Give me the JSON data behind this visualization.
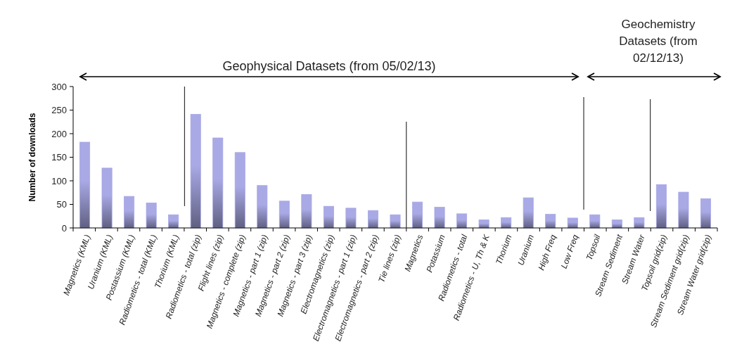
{
  "chart_data": {
    "type": "bar",
    "ylabel": "Number of downloads",
    "categories": [
      "Magnetics (KML)",
      "Uranium (KML)",
      "Postassium (KML)",
      "Radiometics - total (KML)",
      "Thorium (KML)",
      "Radiometics - total (zip)",
      "Flight lines (zip)",
      "Magnetics - complete (zip)",
      "Magnetics - part 1 (zip)",
      "Magnetics - part 2 (zip)",
      "Magnetics - part 3 (zip)",
      "Electromagnetics (zip)",
      "Electromagnetics - part 1 (zip)",
      "Electromagnetics - part 2 (zip)",
      "Tie lines (zip)",
      "Magnetics",
      "Potassium",
      "Radiometics - total",
      "Radiometics - U, Th & K",
      "Thorium",
      "Uranium",
      "High Freq",
      "Low Freq",
      "Topsoil",
      "Stream Sediment",
      "Stream Water",
      "Topsoil grid(zip)",
      "Stream Sediment grid(zip)",
      "Stream Water grid(zip)"
    ],
    "values": [
      182,
      127,
      67,
      53,
      28,
      241,
      191,
      160,
      90,
      57,
      71,
      46,
      42,
      37,
      28,
      55,
      44,
      30,
      17,
      22,
      64,
      29,
      21,
      28,
      17,
      22,
      92,
      76,
      62
    ],
    "color": "#a9a9e6",
    "ylim": [
      0,
      300
    ],
    "yticks": [
      0,
      50,
      100,
      150,
      200,
      250,
      300
    ],
    "grid": false,
    "annotations": [
      "Geophysical Datasets (from 05/02/13)",
      "Geochemistry Datasets (from 02/12/13)"
    ]
  }
}
